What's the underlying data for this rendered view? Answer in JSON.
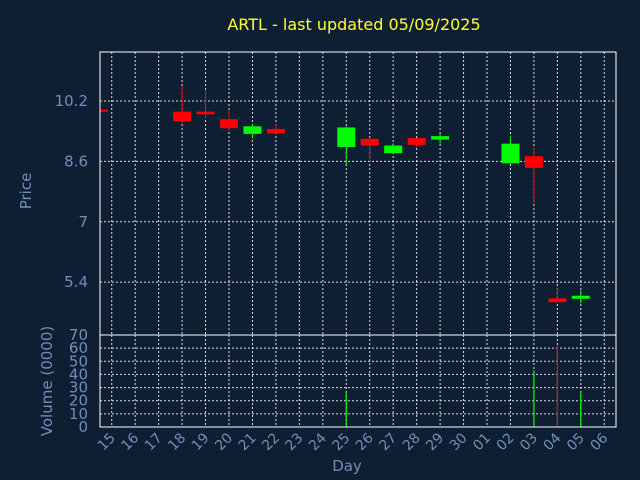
{
  "chart_data": [
    {
      "type": "candlestick",
      "title": "ARTL - last updated 05/09/2025",
      "ylabel": "Price",
      "ylim": [
        4.0,
        11.5
      ],
      "yticks": [
        5.4,
        7,
        8.6,
        10.2
      ],
      "ytick_labels": [
        "5.4",
        "7",
        "8.6",
        "10.2"
      ],
      "grid": true,
      "x_dates": [
        "15",
        "16",
        "17",
        "18",
        "19",
        "20",
        "21",
        "22",
        "23",
        "24",
        "25",
        "26",
        "27",
        "28",
        "29",
        "30",
        "01",
        "02",
        "03",
        "04",
        "05",
        "06"
      ],
      "up_color": "#00ff00",
      "down_color": "#ff0000",
      "candles": [
        {
          "day": "15",
          "open": 9.97,
          "high": 9.97,
          "low": 9.97,
          "close": 9.93
        },
        {
          "day": "18",
          "open": 9.92,
          "high": 10.6,
          "low": 9.58,
          "close": 9.66
        },
        {
          "day": "19",
          "open": 9.92,
          "high": 10.5,
          "low": 9.76,
          "close": 9.85
        },
        {
          "day": "20",
          "open": 9.72,
          "high": 9.97,
          "low": 9.4,
          "close": 9.48
        },
        {
          "day": "21",
          "open": 9.33,
          "high": 9.6,
          "low": 9.2,
          "close": 9.53
        },
        {
          "day": "22",
          "open": 9.46,
          "high": 9.6,
          "low": 9.34,
          "close": 9.34
        },
        {
          "day": "25",
          "open": 8.98,
          "high": 9.52,
          "low": 8.52,
          "close": 9.5
        },
        {
          "day": "26",
          "open": 9.2,
          "high": 9.2,
          "low": 8.6,
          "close": 9.02
        },
        {
          "day": "27",
          "open": 8.82,
          "high": 9.08,
          "low": 8.82,
          "close": 9.02
        },
        {
          "day": "28",
          "open": 9.22,
          "high": 9.22,
          "low": 8.97,
          "close": 9.04
        },
        {
          "day": "29",
          "open": 9.18,
          "high": 9.34,
          "low": 9.07,
          "close": 9.27
        },
        {
          "day": "02",
          "open": 8.55,
          "high": 9.28,
          "low": 8.55,
          "close": 9.07
        },
        {
          "day": "03",
          "open": 8.74,
          "high": 8.98,
          "low": 7.5,
          "close": 8.43
        },
        {
          "day": "04",
          "open": 4.97,
          "high": 5.24,
          "low": 4.87,
          "close": 4.87
        },
        {
          "day": "05",
          "open": 4.96,
          "high": 5.18,
          "low": 4.84,
          "close": 5.04
        }
      ]
    },
    {
      "type": "bar",
      "xlabel": "Day",
      "ylabel": "Volume (0000)",
      "ylim": [
        0,
        70
      ],
      "yticks": [
        0,
        10,
        20,
        30,
        40,
        50,
        60,
        70
      ],
      "ytick_labels": [
        "0",
        "10",
        "20",
        "30",
        "40",
        "50",
        "60",
        "70"
      ],
      "grid": true,
      "categories": [
        "15",
        "16",
        "17",
        "18",
        "19",
        "20",
        "21",
        "22",
        "23",
        "24",
        "25",
        "26",
        "27",
        "28",
        "29",
        "30",
        "01",
        "02",
        "03",
        "04",
        "05",
        "06"
      ],
      "bars": [
        {
          "day": "25",
          "value": 26,
          "color": "#00ff00"
        },
        {
          "day": "03",
          "value": 43,
          "color": "#00ff00"
        },
        {
          "day": "04",
          "value": 62,
          "color": "#ff0000"
        },
        {
          "day": "05",
          "value": 26,
          "color": "#00ff00"
        }
      ]
    }
  ]
}
